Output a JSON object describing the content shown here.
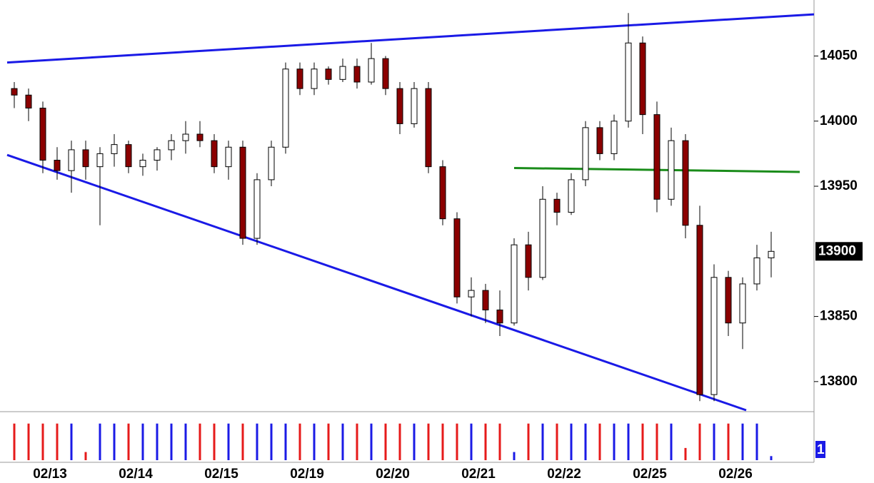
{
  "chart_data": {
    "type": "candlestick",
    "categories": [
      null,
      null,
      null,
      "02/13",
      null,
      null,
      null,
      null,
      null,
      "02/14",
      null,
      null,
      null,
      null,
      null,
      "02/15",
      null,
      null,
      null,
      null,
      null,
      "02/19",
      null,
      null,
      null,
      null,
      null,
      "02/20",
      null,
      null,
      null,
      null,
      null,
      "02/21",
      null,
      null,
      null,
      null,
      null,
      "02/22",
      null,
      null,
      null,
      null,
      null,
      "02/25",
      null,
      null,
      null,
      null,
      null,
      "02/26",
      null,
      null
    ],
    "open": [
      14025,
      14020,
      14010,
      13970,
      13962,
      13978,
      13965,
      13975,
      13982,
      13965,
      13970,
      13978,
      13985,
      13990,
      13985,
      13965,
      13980,
      13910,
      13955,
      13980,
      14040,
      14025,
      14040,
      14032,
      14042,
      14030,
      14048,
      14025,
      13998,
      14025,
      13965,
      13925,
      13865,
      13870,
      13855,
      13845,
      13905,
      13880,
      13940,
      13930,
      13955,
      13995,
      13975,
      14000,
      14060,
      14005,
      13940,
      13985,
      13920,
      13790,
      13880,
      13845,
      13875,
      13895
    ],
    "high": [
      14030,
      14025,
      14015,
      13980,
      13985,
      13985,
      13980,
      13990,
      13985,
      13975,
      13980,
      13990,
      14000,
      14000,
      13990,
      13985,
      13985,
      13960,
      13985,
      14045,
      14045,
      14045,
      14042,
      14048,
      14048,
      14060,
      14050,
      14030,
      14030,
      14030,
      13970,
      13930,
      13880,
      13875,
      13870,
      13910,
      13915,
      13950,
      13945,
      13960,
      14000,
      14000,
      14005,
      14083,
      14065,
      14015,
      13995,
      13990,
      13935,
      13890,
      13885,
      13880,
      13905,
      13915
    ],
    "low": [
      14010,
      14000,
      13960,
      13955,
      13945,
      13955,
      13920,
      13965,
      13960,
      13958,
      13962,
      13970,
      13975,
      13980,
      13960,
      13955,
      13905,
      13905,
      13950,
      13975,
      14020,
      14020,
      14028,
      14030,
      14025,
      14028,
      14020,
      13990,
      13995,
      13960,
      13920,
      13860,
      13850,
      13845,
      13835,
      13843,
      13870,
      13878,
      13920,
      13928,
      13950,
      13970,
      13970,
      13995,
      13990,
      13930,
      13935,
      13910,
      13785,
      13785,
      13835,
      13825,
      13870,
      13880
    ],
    "close": [
      14020,
      14010,
      13970,
      13962,
      13978,
      13965,
      13975,
      13982,
      13965,
      13970,
      13978,
      13985,
      13990,
      13985,
      13965,
      13980,
      13910,
      13955,
      13980,
      14040,
      14025,
      14040,
      14032,
      14042,
      14030,
      14048,
      14025,
      13998,
      14025,
      13965,
      13925,
      13865,
      13870,
      13855,
      13845,
      13905,
      13880,
      13940,
      13930,
      13955,
      13995,
      13975,
      14000,
      14060,
      14005,
      13940,
      13985,
      13920,
      13790,
      13880,
      13845,
      13875,
      13895,
      13900
    ],
    "volume": [
      9,
      9,
      9,
      9,
      9,
      2,
      9,
      9,
      9,
      9,
      9,
      9,
      9,
      9,
      9,
      9,
      9,
      9,
      9,
      9,
      9,
      9,
      9,
      9,
      9,
      9,
      9,
      9,
      9,
      9,
      9,
      9,
      9,
      9,
      9,
      2,
      9,
      9,
      9,
      9,
      9,
      9,
      9,
      9,
      9,
      9,
      9,
      3,
      9,
      9,
      9,
      9,
      9,
      1
    ],
    "ylim": [
      13778,
      14093
    ],
    "yticks": [
      13800,
      13850,
      13950,
      14000,
      14050
    ],
    "last_price": 13900,
    "volume_ylim": [
      0,
      10
    ],
    "volume_label": "1",
    "lines": [
      {
        "color": "#1a1ae6",
        "x": [
          -0.5,
          56
        ],
        "y": [
          14045,
          14082
        ]
      },
      {
        "color": "#1a1ae6",
        "x": [
          -0.5,
          51.25
        ],
        "y": [
          13974,
          13778
        ]
      },
      {
        "color": "#1a8c1a",
        "x": [
          35,
          55
        ],
        "y": [
          13964,
          13961
        ]
      }
    ],
    "colors": {
      "down": "#8b0000",
      "up": "#ffffff",
      "volume_up": "#1a1ae6",
      "volume_down": "#e61a1a"
    }
  }
}
